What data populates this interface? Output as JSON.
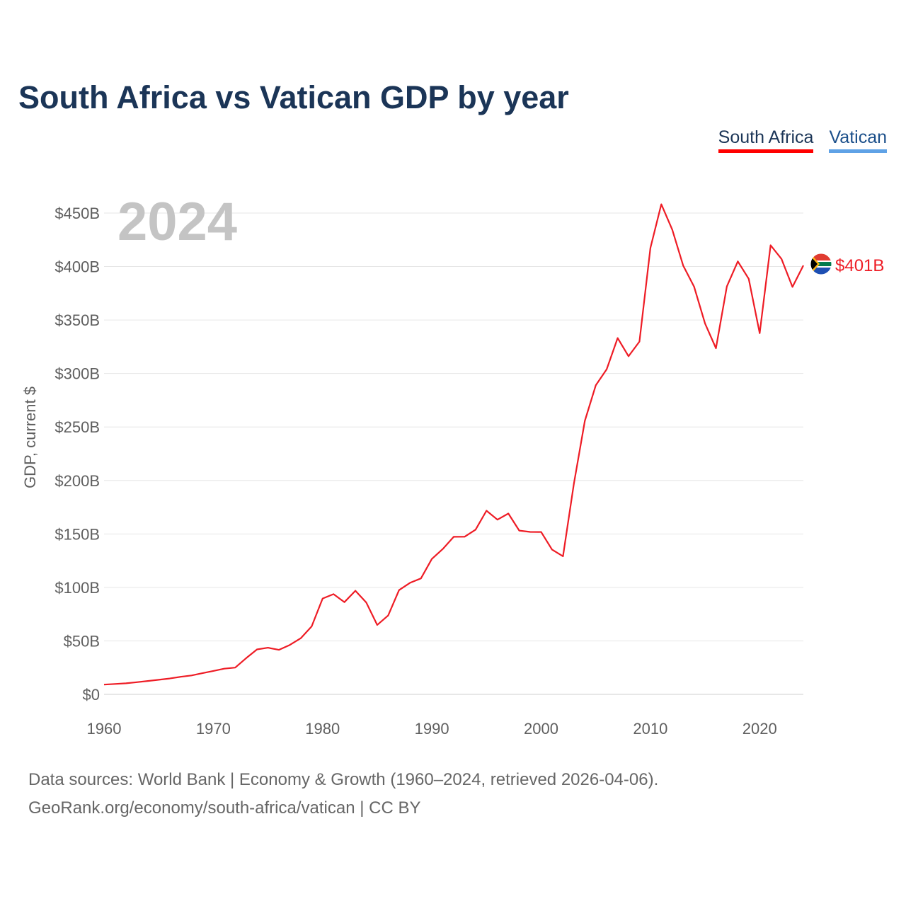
{
  "title": "South Africa vs Vatican GDP by year",
  "legend": {
    "items": [
      {
        "label": "South Africa",
        "color": "#ff0000"
      },
      {
        "label": "Vatican",
        "color": "#5fa2e6"
      }
    ]
  },
  "chart_data": {
    "type": "line",
    "title": "South Africa vs Vatican GDP by year",
    "xlabel": "",
    "ylabel": "GDP, current $",
    "xlim": [
      1960,
      2024
    ],
    "ylim": [
      0,
      450
    ],
    "unit": "B",
    "year_indicator": "2024",
    "x_ticks": [
      1960,
      1970,
      1980,
      1990,
      2000,
      2010,
      2020
    ],
    "x_tick_labels": [
      "1960",
      "1970",
      "1980",
      "1990",
      "2000",
      "2010",
      "2020"
    ],
    "y_ticks": [
      0,
      50,
      100,
      150,
      200,
      250,
      300,
      350,
      400,
      450
    ],
    "y_tick_labels": [
      "$0",
      "$50B",
      "$100B",
      "$150B",
      "$200B",
      "$250B",
      "$300B",
      "$350B",
      "$400B",
      "$450B"
    ],
    "grid": true,
    "series": [
      {
        "name": "South Africa",
        "color": "#ee1c25",
        "end_label": "$401B",
        "flag_icon": "south-africa-flag-icon",
        "x": [
          1960,
          1961,
          1962,
          1963,
          1964,
          1965,
          1966,
          1967,
          1968,
          1969,
          1970,
          1971,
          1972,
          1973,
          1974,
          1975,
          1976,
          1977,
          1978,
          1979,
          1980,
          1981,
          1982,
          1983,
          1984,
          1985,
          1986,
          1987,
          1988,
          1989,
          1990,
          1991,
          1992,
          1993,
          1994,
          1995,
          1996,
          1997,
          1998,
          1999,
          2000,
          2001,
          2002,
          2003,
          2004,
          2005,
          2006,
          2007,
          2008,
          2009,
          2010,
          2011,
          2012,
          2013,
          2014,
          2015,
          2016,
          2017,
          2018,
          2019,
          2020,
          2021,
          2022,
          2023,
          2024
        ],
        "values": [
          9.1,
          9.7,
          10.3,
          11.4,
          12.5,
          13.6,
          14.8,
          16.4,
          17.7,
          19.8,
          21.9,
          24.0,
          25.0,
          33.8,
          42.0,
          43.6,
          41.6,
          46.2,
          52.5,
          63.5,
          89.6,
          93.7,
          86.2,
          96.9,
          85.8,
          64.9,
          73.7,
          97.5,
          104.3,
          108.4,
          126.6,
          135.9,
          147.3,
          147.4,
          154.0,
          171.7,
          163.3,
          169.1,
          153.1,
          151.9,
          151.8,
          135.4,
          129.1,
          197.0,
          255.8,
          288.9,
          303.9,
          333.1,
          316.1,
          329.8,
          417.3,
          458.2,
          434.4,
          400.9,
          381.2,
          346.7,
          323.6,
          381.4,
          404.8,
          388.5,
          337.6,
          419.9,
          407.1,
          380.9,
          401.0
        ]
      },
      {
        "name": "Vatican",
        "color": "#5fa2e6",
        "x": [],
        "values": []
      }
    ]
  },
  "footer": {
    "sources": "Data sources: World Bank | Economy & Growth (1960–2024, retrieved 2026-04-06).",
    "credit": "GeoRank.org/economy/south-africa/vatican | CC BY"
  }
}
